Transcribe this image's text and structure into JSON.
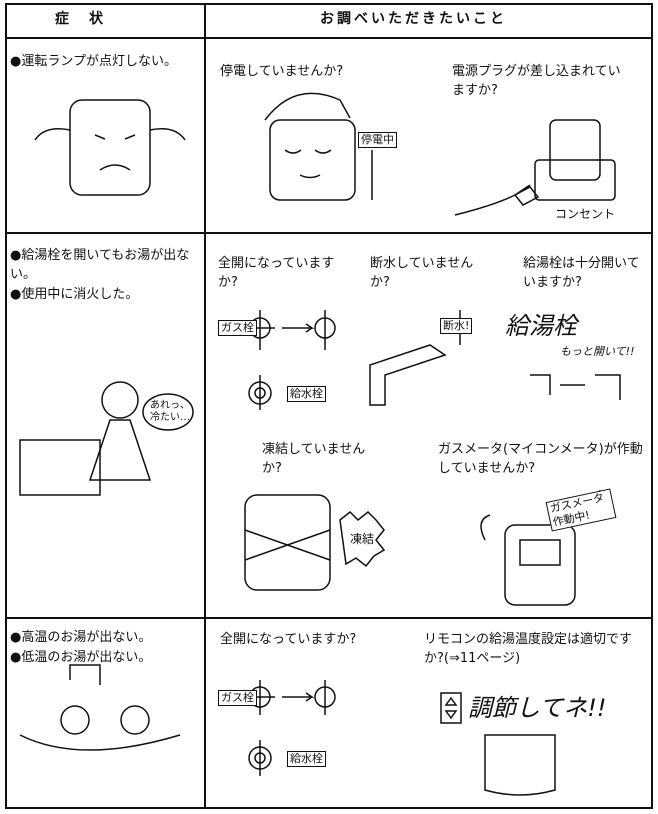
{
  "header": {
    "symptom": "症　状",
    "check": "お調べいただきたいこと"
  },
  "rows": [
    {
      "symptoms": [
        "●運転ランプが点灯しない。"
      ],
      "checks": [
        "停電していませんか?",
        "電源プラグが差し込まれていますか?"
      ],
      "labels": [
        "停電中",
        "コンセント"
      ]
    },
    {
      "symptoms": [
        "●給湯栓を開いてもお湯が出ない。",
        "●使用中に消火した。"
      ],
      "checks": [
        "全開になっていますか?",
        "断水していませんか?",
        "給湯栓は十分開いていますか?",
        "凍結していませんか?",
        "ガスメータ(マイコンメータ)が作動していませんか?"
      ],
      "labels": [
        "ガス栓",
        "給水栓",
        "断水!",
        "給湯栓",
        "もっと開いて!!",
        "あれっ、冷たい…",
        "凍結",
        "ガスメータ作動中!"
      ]
    },
    {
      "symptoms": [
        "●高温のお湯が出ない。",
        "●低温のお湯が出ない。"
      ],
      "checks": [
        "全開になっていますか?",
        "リモコンの給湯温度設定は適切ですか?(⇒11ページ)"
      ],
      "labels": [
        "ガス栓",
        "給水栓",
        "調節してネ!!"
      ]
    }
  ]
}
